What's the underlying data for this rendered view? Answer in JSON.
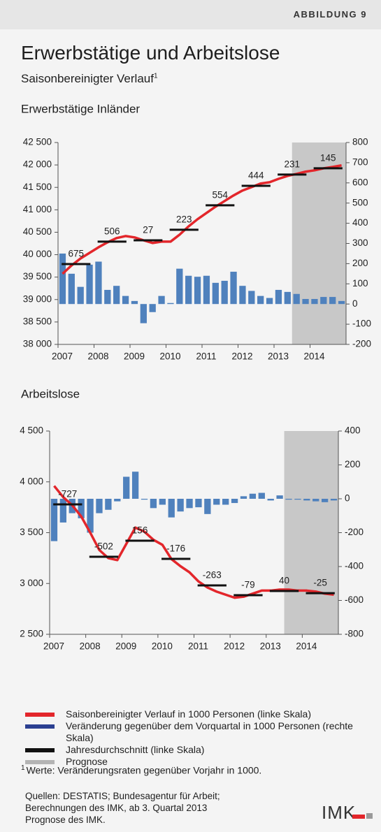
{
  "header": {
    "label": "ABBILDUNG 9"
  },
  "title": "Erwerbstätige und Arbeitslose",
  "subtitle": "Saisonbereinigter Verlauf",
  "subtitle_note": "1",
  "chart_data": [
    {
      "type": "combo",
      "title": "Erwerbstätige Inländer",
      "x": [
        2007.125,
        2007.375,
        2007.625,
        2007.875,
        2008.125,
        2008.375,
        2008.625,
        2008.875,
        2009.125,
        2009.375,
        2009.625,
        2009.875,
        2010.125,
        2010.375,
        2010.625,
        2010.875,
        2011.125,
        2011.375,
        2011.625,
        2011.875,
        2012.125,
        2012.375,
        2012.625,
        2012.875,
        2013.125,
        2013.375,
        2013.625,
        2013.875,
        2014.125,
        2014.375,
        2014.625,
        2014.875
      ],
      "xlim": [
        2007,
        2015
      ],
      "xticks": [
        2007,
        2008,
        2009,
        2010,
        2011,
        2012,
        2013,
        2014
      ],
      "ylim": [
        38000,
        42500
      ],
      "yticks": [
        {
          "value": 38000,
          "label": "38 000"
        },
        {
          "value": 38500,
          "label": "38 500"
        },
        {
          "value": 39000,
          "label": "39 000"
        },
        {
          "value": 39500,
          "label": "39 500"
        },
        {
          "value": 40000,
          "label": "40 000"
        },
        {
          "value": 40500,
          "label": "40 500"
        },
        {
          "value": 41000,
          "label": "41 000"
        },
        {
          "value": 41500,
          "label": "41 500"
        },
        {
          "value": 42000,
          "label": "42 000"
        },
        {
          "value": 42500,
          "label": "42 500"
        }
      ],
      "y2lim": [
        -200,
        800
      ],
      "y2ticks": [
        -200,
        -100,
        0,
        100,
        200,
        300,
        400,
        500,
        600,
        700,
        800
      ],
      "forecast": {
        "xlim": [
          2013.5,
          2015
        ],
        "color": "#c8c8c8"
      },
      "series": [
        {
          "type": "bar",
          "axis": "y2",
          "color": "#4f81bd",
          "values": [
            250,
            150,
            85,
            195,
            210,
            70,
            90,
            40,
            15,
            -95,
            -40,
            40,
            5,
            175,
            140,
            135,
            140,
            105,
            115,
            160,
            90,
            65,
            40,
            30,
            70,
            60,
            50,
            25,
            25,
            35,
            35,
            15
          ]
        },
        {
          "type": "line",
          "color": "#e3262b",
          "values": [
            39574,
            39760,
            39916,
            40040,
            40165,
            40275,
            40370,
            40415,
            40385,
            40320,
            40260,
            40290,
            40290,
            40445,
            40630,
            40790,
            40930,
            41070,
            41195,
            41320,
            41430,
            41505,
            41585,
            41615,
            41690,
            41755,
            41800,
            41850,
            41880,
            41925,
            41955,
            41990
          ]
        },
        {
          "type": "segment",
          "color": "#111111",
          "x": [
            2007.5,
            2008.5,
            2009.5,
            2010.5,
            2011.5,
            2012.5,
            2013.5,
            2014.5
          ],
          "values": [
            39790,
            40290,
            40320,
            40555,
            41100,
            41535,
            41785,
            41925
          ],
          "change_labels": [
            675,
            506,
            27,
            223,
            554,
            444,
            231,
            145
          ]
        }
      ]
    },
    {
      "type": "combo",
      "title": "Arbeitslose",
      "x": [
        2007.125,
        2007.375,
        2007.625,
        2007.875,
        2008.125,
        2008.375,
        2008.625,
        2008.875,
        2009.125,
        2009.375,
        2009.625,
        2009.875,
        2010.125,
        2010.375,
        2010.625,
        2010.875,
        2011.125,
        2011.375,
        2011.625,
        2011.875,
        2012.125,
        2012.375,
        2012.625,
        2012.875,
        2013.125,
        2013.375,
        2013.625,
        2013.875,
        2014.125,
        2014.375,
        2014.625,
        2014.875
      ],
      "xlim": [
        2007,
        2015
      ],
      "xticks": [
        2007,
        2008,
        2009,
        2010,
        2011,
        2012,
        2013,
        2014
      ],
      "ylim": [
        2500,
        4500
      ],
      "yticks": [
        {
          "value": 2500,
          "label": "2 500"
        },
        {
          "value": 3000,
          "label": "3 000"
        },
        {
          "value": 3500,
          "label": "3 500"
        },
        {
          "value": 4000,
          "label": "4 000"
        },
        {
          "value": 4500,
          "label": "4 500"
        }
      ],
      "y2lim": [
        -800,
        400
      ],
      "y2ticks": [
        -800,
        -600,
        -400,
        -200,
        0,
        200,
        400
      ],
      "forecast": {
        "xlim": [
          2013.5,
          2015
        ],
        "color": "#c8c8c8"
      },
      "series": [
        {
          "type": "bar",
          "axis": "y2",
          "color": "#4f81bd",
          "values": [
            -250,
            -140,
            -85,
            -115,
            -200,
            -85,
            -65,
            -15,
            130,
            160,
            -5,
            -55,
            -35,
            -110,
            -75,
            -55,
            -50,
            -90,
            -35,
            -35,
            -25,
            15,
            30,
            35,
            -10,
            20,
            -5,
            -5,
            -10,
            -15,
            -20,
            -10
          ]
        },
        {
          "type": "line",
          "color": "#e3262b",
          "values": [
            3960,
            3850,
            3770,
            3660,
            3500,
            3330,
            3250,
            3230,
            3390,
            3550,
            3510,
            3430,
            3380,
            3240,
            3170,
            3110,
            3020,
            2960,
            2920,
            2890,
            2860,
            2870,
            2900,
            2930,
            2930,
            2940,
            2940,
            2930,
            2930,
            2920,
            2900,
            2890
          ]
        },
        {
          "type": "segment",
          "color": "#111111",
          "x": [
            2007.5,
            2008.5,
            2009.5,
            2010.5,
            2011.5,
            2012.5,
            2013.5,
            2014.5
          ],
          "values": [
            3778,
            3263,
            3421,
            3242,
            2981,
            2885,
            2926,
            2905
          ],
          "change_labels": [
            -727,
            -502,
            156,
            -176,
            -263,
            -79,
            40,
            -25
          ]
        }
      ]
    }
  ],
  "legend": [
    {
      "label": "Saisonbereinigter Verlauf in 1000 Personen (linke Skala)",
      "color": "#e3262b"
    },
    {
      "label": "Veränderung gegenüber dem Vorquartal in 1000 Personen (rechte Skala)",
      "color": "#2b3f91"
    },
    {
      "label": "Jahresdurchschnitt (linke Skala)",
      "color": "#111111"
    },
    {
      "label": "Prognose",
      "color": "#b4b4b4"
    }
  ],
  "footnote": {
    "mark": "1",
    "text": "Werte: Veränderungsraten gegenüber Vorjahr in 1000."
  },
  "sources": [
    "Quellen: DESTATIS; Bundesagentur für Arbeit;",
    "Berechnungen des IMK, ab 3. Quartal 2013",
    "Prognose des IMK."
  ],
  "logo": "IMK"
}
